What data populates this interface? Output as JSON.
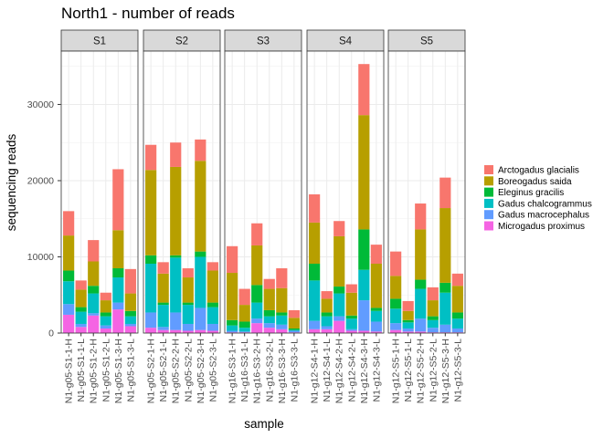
{
  "chart_data": {
    "type": "bar",
    "stacked": true,
    "title": "North1 - number of reads",
    "xlabel": "sample",
    "ylabel": "sequencing reads",
    "ylim": [
      0,
      37000
    ],
    "yticks": [
      0,
      10000,
      20000,
      30000
    ],
    "grid": true,
    "legend_position": "right",
    "series": [
      {
        "name": "Arctogadus glacialis",
        "color": "#F8766D"
      },
      {
        "name": "Boreogadus saida",
        "color": "#B79F00"
      },
      {
        "name": "Eleginus gracilis",
        "color": "#00BA38"
      },
      {
        "name": "Gadus chalcogrammus",
        "color": "#00BFC4"
      },
      {
        "name": "Gadus macrocephalus",
        "color": "#619CFF"
      },
      {
        "name": "Microgadus proximus",
        "color": "#F564E3"
      }
    ],
    "facets": [
      {
        "label": "S1",
        "samples": [
          {
            "label": "N1-g05-S1-1-H",
            "values": [
              3200,
              4600,
              1400,
              3000,
              1400,
              2400
            ]
          },
          {
            "label": "N1-g05-S1-1-L",
            "values": [
              1200,
              2300,
              600,
              1600,
              400,
              800
            ]
          },
          {
            "label": "N1-g05-S1-2-H",
            "values": [
              2800,
              3200,
              1000,
              2600,
              300,
              2300
            ]
          },
          {
            "label": "N1-g05-S1-2-L",
            "values": [
              1000,
              1600,
              500,
              1200,
              400,
              600
            ]
          },
          {
            "label": "N1-g05-S1-3-H",
            "values": [
              8000,
              5000,
              1200,
              3300,
              900,
              3100
            ]
          },
          {
            "label": "N1-g05-S1-3-L",
            "values": [
              3200,
              2300,
              700,
              1000,
              300,
              900
            ]
          }
        ]
      },
      {
        "label": "S2",
        "samples": [
          {
            "label": "N1-g05-S2-1-H",
            "values": [
              3300,
              11200,
              1100,
              6400,
              2000,
              700
            ]
          },
          {
            "label": "N1-g05-S2-1-L",
            "values": [
              1500,
              3800,
              300,
              2900,
              400,
              400
            ]
          },
          {
            "label": "N1-g05-S2-2-H",
            "values": [
              3200,
              11600,
              300,
              7200,
              2300,
              400
            ]
          },
          {
            "label": "N1-g05-S2-2-L",
            "values": [
              1200,
              3300,
              300,
              2500,
              900,
              300
            ]
          },
          {
            "label": "N1-g05-S2-3-H",
            "values": [
              2800,
              11900,
              700,
              6700,
              2900,
              400
            ]
          },
          {
            "label": "N1-g05-S2-3-L",
            "values": [
              1100,
              4200,
              600,
              2200,
              900,
              300
            ]
          }
        ]
      },
      {
        "label": "S3",
        "samples": [
          {
            "label": "N1-g16-S3-1-H",
            "values": [
              3500,
              6200,
              700,
              700,
              200,
              100
            ]
          },
          {
            "label": "N1-g16-S3-1-L",
            "values": [
              2100,
              2200,
              800,
              500,
              100,
              100
            ]
          },
          {
            "label": "N1-g16-S3-2-H",
            "values": [
              2900,
              5200,
              2300,
              2100,
              600,
              1300
            ]
          },
          {
            "label": "N1-g16-S3-2-L",
            "values": [
              1300,
              2800,
              800,
              900,
              600,
              700
            ]
          },
          {
            "label": "N1-g16-S3-3-H",
            "values": [
              2600,
              3200,
              400,
              1200,
              600,
              500
            ]
          },
          {
            "label": "N1-g16-S3-3-L",
            "values": [
              1000,
              1400,
              200,
              100,
              200,
              100
            ]
          }
        ]
      },
      {
        "label": "S4",
        "samples": [
          {
            "label": "N1-g12-S4-1-H",
            "values": [
              3700,
              5400,
              2200,
              5300,
              1100,
              500
            ]
          },
          {
            "label": "N1-g12-S4-1-L",
            "values": [
              1000,
              1800,
              500,
              1300,
              400,
              500
            ]
          },
          {
            "label": "N1-g12-S4-2-H",
            "values": [
              2000,
              6600,
              900,
              3000,
              600,
              1600
            ]
          },
          {
            "label": "N1-g12-S4-2-L",
            "values": [
              1100,
              3000,
              400,
              1400,
              200,
              300
            ]
          },
          {
            "label": "N1-g12-S4-3-H",
            "values": [
              6700,
              15000,
              5300,
              4000,
              4000,
              300
            ]
          },
          {
            "label": "N1-g12-S4-3-L",
            "values": [
              2500,
              5800,
              400,
              1400,
              1300,
              200
            ]
          }
        ]
      },
      {
        "label": "S5",
        "samples": [
          {
            "label": "N1-g12-S5-1-H",
            "values": [
              3200,
              3000,
              1300,
              1900,
              900,
              400
            ]
          },
          {
            "label": "N1-g12-S5-1-L",
            "values": [
              1300,
              1200,
              300,
              800,
              400,
              200
            ]
          },
          {
            "label": "N1-g12-S5-2-H",
            "values": [
              3400,
              6600,
              1200,
              3900,
              1700,
              200
            ]
          },
          {
            "label": "N1-g12-S5-2-L",
            "values": [
              1700,
              2100,
              500,
              1000,
              600,
              100
            ]
          },
          {
            "label": "N1-g12-S5-3-H",
            "values": [
              4000,
              9800,
              1300,
              4200,
              1000,
              100
            ]
          },
          {
            "label": "N1-g12-S5-3-L",
            "values": [
              1600,
              3500,
              800,
              1300,
              500,
              100
            ]
          }
        ]
      }
    ]
  }
}
